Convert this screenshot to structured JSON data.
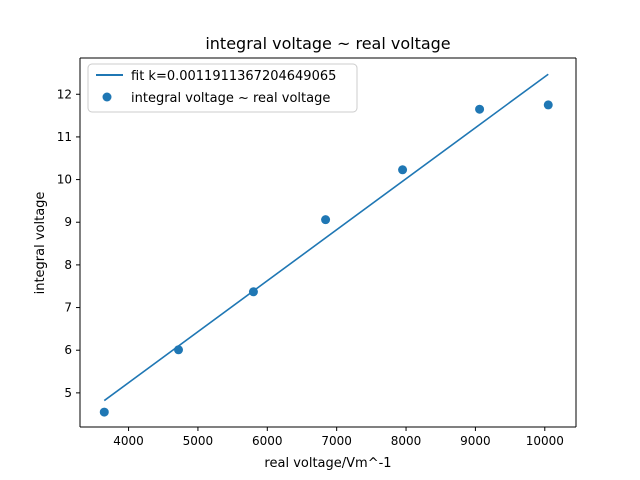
{
  "chart_data": {
    "type": "scatter",
    "title": "integral voltage ~ real voltage",
    "xlabel": "real voltage/Vm^-1",
    "ylabel": "integral voltage",
    "xlim": [
      3300,
      10450
    ],
    "ylim": [
      4.2,
      12.85
    ],
    "xticks": [
      4000,
      5000,
      6000,
      7000,
      8000,
      9000,
      10000
    ],
    "yticks": [
      5,
      6,
      7,
      8,
      9,
      10,
      11,
      12
    ],
    "grid": false,
    "legend_position": "upper left",
    "series": [
      {
        "name": "fit k=0.0011911367204649065",
        "kind": "line",
        "color": "#1f77b4",
        "x": [
          3650,
          10050
        ],
        "y": [
          4.82,
          12.47
        ]
      },
      {
        "name": "integral voltage ~ real voltage",
        "kind": "scatter",
        "color": "#1f77b4",
        "x": [
          3650,
          4720,
          5800,
          6840,
          7950,
          9060,
          10050
        ],
        "y": [
          4.55,
          6.01,
          7.37,
          9.06,
          10.23,
          11.65,
          11.75
        ]
      }
    ]
  }
}
